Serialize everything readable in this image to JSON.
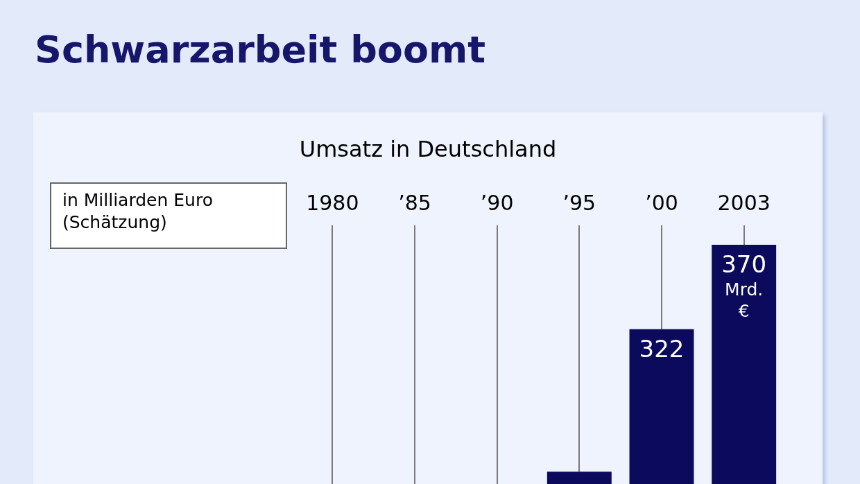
{
  "chart_data": {
    "type": "bar",
    "title": "Schwarzarbeit boomt",
    "subtitle": "Umsatz in Deutschland",
    "ylabel": "in Milliarden Euro (Schätzung)",
    "categories": [
      "1980",
      "’85",
      "’90",
      "’95",
      "’00",
      "2003"
    ],
    "values": [
      null,
      null,
      null,
      241,
      322,
      370
    ],
    "value_labels": [
      null,
      null,
      null,
      null,
      "322",
      "370 Mrd. €"
    ],
    "color": "#0b0a5c",
    "ylim": [
      234,
      381
    ],
    "tick_labels": "x",
    "grid": "x",
    "legend": false
  }
}
